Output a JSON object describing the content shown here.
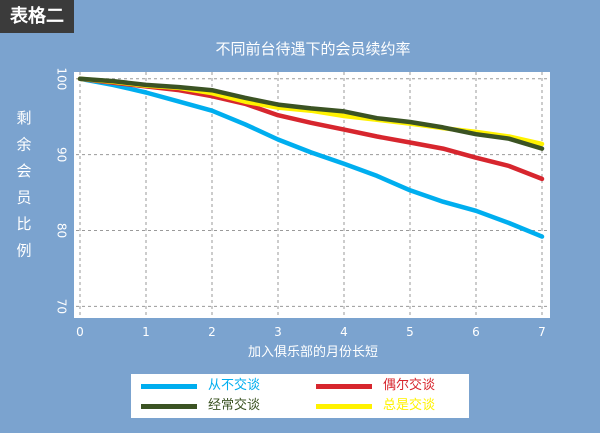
{
  "corner_label": "表格二",
  "chart_data": {
    "type": "line",
    "title": "不同前台待遇下的会员续约率",
    "xlabel": "加入俱乐部的月份长短",
    "ylabel": "剩余会员比例",
    "xlim": [
      0,
      7
    ],
    "ylim": [
      69,
      100.5
    ],
    "xticks": [
      "0",
      "1",
      "2",
      "3",
      "4",
      "5",
      "6",
      "7"
    ],
    "yticks": [
      "70",
      "80",
      "90",
      "100"
    ],
    "grid": true,
    "legend_position": "bottom",
    "series": [
      {
        "name": "从不交谈",
        "color": "#00aeef",
        "x": [
          0,
          0.5,
          1,
          1.5,
          2,
          2.5,
          3,
          3.5,
          4,
          4.5,
          5,
          5.5,
          6,
          6.5,
          7
        ],
        "values": [
          100,
          99.2,
          98.2,
          97,
          95.8,
          94,
          92,
          90.3,
          88.8,
          87.2,
          85.3,
          83.8,
          82.6,
          81,
          79.2
        ]
      },
      {
        "name": "偶尔交谈",
        "color": "#d7262e",
        "x": [
          0,
          0.5,
          1,
          1.5,
          2,
          2.5,
          3,
          3.5,
          4,
          4.5,
          5,
          5.5,
          6,
          6.5,
          7
        ],
        "values": [
          100,
          99.5,
          99,
          98.5,
          97.7,
          96.7,
          95.2,
          94.2,
          93.3,
          92.4,
          91.6,
          90.8,
          89.6,
          88.5,
          86.8
        ]
      },
      {
        "name": "经常交谈",
        "color": "#3b5323",
        "x": [
          0,
          0.5,
          1,
          1.5,
          2,
          2.5,
          3,
          3.5,
          4,
          4.5,
          5,
          5.5,
          6,
          6.5,
          7
        ],
        "values": [
          100,
          99.7,
          99.2,
          98.9,
          98.5,
          97.5,
          96.6,
          96.1,
          95.7,
          94.8,
          94.3,
          93.6,
          92.7,
          92.1,
          90.8
        ]
      },
      {
        "name": "总是交谈",
        "color": "#fff200",
        "x": [
          0,
          0.5,
          1,
          1.5,
          2,
          2.5,
          3,
          3.5,
          4,
          4.5,
          5,
          5.5,
          6,
          6.5,
          7
        ],
        "values": [
          100,
          99.6,
          99.1,
          98.8,
          98.1,
          97,
          96.2,
          95.8,
          95.1,
          94.6,
          94.1,
          93.5,
          93,
          92.4,
          91.4
        ]
      }
    ]
  }
}
